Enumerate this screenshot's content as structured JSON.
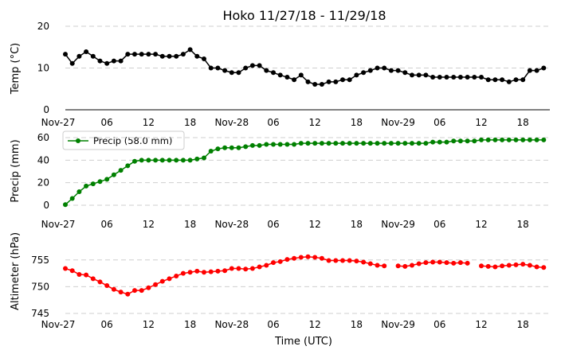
{
  "chart_data": [
    {
      "type": "line",
      "title": "Hoko 11/27/18 - 11/29/18",
      "ylabel": "Temp (°C)",
      "ylim": [
        0,
        20
      ],
      "yticks": [
        "0",
        "10",
        "20"
      ],
      "xticks": [
        "Nov-27",
        "06",
        "12",
        "18",
        "Nov-28",
        "06",
        "12",
        "18",
        "Nov-29",
        "06",
        "12",
        "18"
      ],
      "x_hours": [
        0,
        1,
        2,
        3,
        4,
        5,
        6,
        7,
        8,
        9,
        10,
        11,
        12,
        13,
        14,
        15,
        16,
        17,
        18,
        19,
        20,
        21,
        22,
        23,
        24,
        25,
        26,
        27,
        28,
        29,
        30,
        31,
        32,
        33,
        34,
        35,
        36,
        37,
        38,
        39,
        40,
        41,
        42,
        43,
        44,
        45,
        46,
        47,
        48,
        49,
        50,
        51,
        52,
        53,
        54,
        55,
        56,
        57,
        58,
        59,
        60,
        61,
        62,
        63,
        64,
        65,
        66,
        67,
        68,
        69
      ],
      "series": [
        {
          "name": "Temp",
          "color": "#000000",
          "values": [
            13.3,
            11.1,
            12.8,
            13.9,
            12.8,
            11.7,
            11.1,
            11.7,
            11.7,
            13.3,
            13.3,
            13.3,
            13.3,
            13.3,
            12.8,
            12.8,
            12.8,
            13.3,
            14.4,
            12.8,
            12.2,
            10.0,
            10.0,
            9.4,
            8.9,
            8.9,
            10.0,
            10.6,
            10.6,
            9.4,
            8.9,
            8.3,
            7.8,
            7.2,
            8.3,
            6.7,
            6.1,
            6.1,
            6.7,
            6.7,
            7.2,
            7.2,
            8.3,
            8.9,
            9.4,
            10.0,
            10.0,
            9.4,
            9.4,
            8.9,
            8.3,
            8.3,
            8.3,
            7.8,
            7.8,
            7.8,
            7.8,
            7.8,
            7.8,
            7.8,
            7.8,
            7.2,
            7.2,
            7.2,
            6.7,
            7.2,
            7.2,
            9.4,
            9.4,
            10.0
          ]
        }
      ]
    },
    {
      "type": "line",
      "ylabel": "Precip (mm)",
      "ylim": [
        0,
        60
      ],
      "yticks": [
        "0",
        "20",
        "40",
        "60"
      ],
      "xticks": [
        "Nov-27",
        "06",
        "12",
        "18",
        "Nov-28",
        "06",
        "12",
        "18",
        "Nov-29",
        "06",
        "12",
        "18"
      ],
      "legend": {
        "label": "Precip (58.0 mm)",
        "position": "upper-left"
      },
      "series": [
        {
          "name": "Precip (58.0 mm)",
          "color": "#008000",
          "values": [
            0.5,
            6,
            12,
            17,
            19,
            21,
            23,
            27,
            31,
            35,
            39,
            40,
            40,
            40,
            40,
            40,
            40,
            40,
            40,
            41,
            42,
            48,
            50,
            51,
            51,
            51,
            52,
            53,
            53,
            54,
            54,
            54,
            54,
            54,
            55,
            55,
            55,
            55,
            55,
            55,
            55,
            55,
            55,
            55,
            55,
            55,
            55,
            55,
            55,
            55,
            55,
            55,
            55,
            56,
            56,
            56,
            57,
            57,
            57,
            57,
            58,
            58,
            58,
            58,
            58,
            58,
            58,
            58,
            58,
            58
          ]
        }
      ]
    },
    {
      "type": "line",
      "ylabel": "Altimeter (hPa)",
      "xlabel": "Time (UTC)",
      "ylim": [
        745,
        757.5
      ],
      "yticks": [
        "745",
        "750",
        "755"
      ],
      "xticks": [
        "Nov-27",
        "06",
        "12",
        "18",
        "Nov-28",
        "06",
        "12",
        "18",
        "Nov-29",
        "06",
        "12",
        "18"
      ],
      "series": [
        {
          "name": "Altimeter",
          "color": "#ff0000",
          "values": [
            753.4,
            753.0,
            752.3,
            752.2,
            751.5,
            750.9,
            750.2,
            749.5,
            749.0,
            748.6,
            749.3,
            749.3,
            749.8,
            750.4,
            751.0,
            751.5,
            752.0,
            752.5,
            752.7,
            752.9,
            752.7,
            752.8,
            752.9,
            753.0,
            753.4,
            753.4,
            753.3,
            753.4,
            753.7,
            754.0,
            754.5,
            754.7,
            755.1,
            755.3,
            755.5,
            755.6,
            755.5,
            755.3,
            754.9,
            754.9,
            754.9,
            754.9,
            754.8,
            754.6,
            754.3,
            754.0,
            753.9,
            null,
            753.9,
            753.8,
            754.0,
            754.3,
            754.5,
            754.6,
            754.6,
            754.5,
            754.4,
            754.5,
            754.4,
            null,
            753.9,
            753.8,
            753.7,
            753.9,
            754.0,
            754.1,
            754.2,
            754.0,
            753.7,
            753.6
          ]
        }
      ]
    }
  ]
}
